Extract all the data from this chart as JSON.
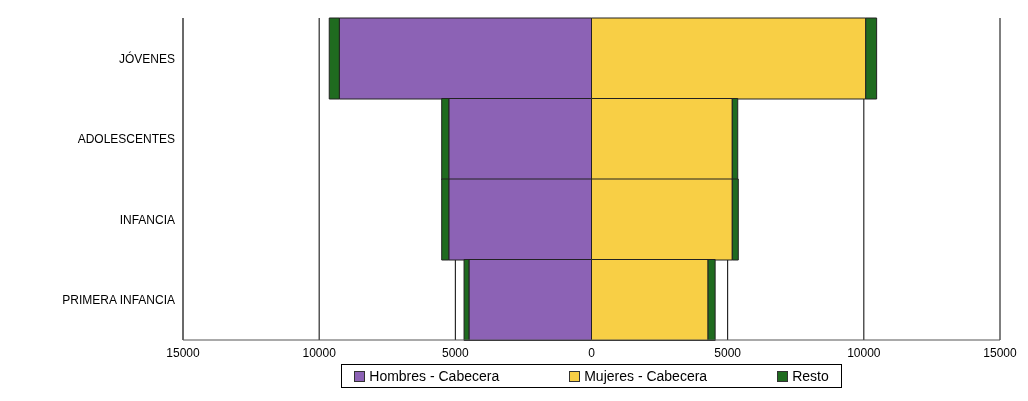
{
  "chart_data": {
    "type": "bar",
    "orientation": "horizontal",
    "stacked": true,
    "categories": [
      "JÓVENES",
      "ADOLESCENTES",
      "INFANCIA",
      "PRIMERA INFANCIA"
    ],
    "series": [
      {
        "name": "Hombres - Cabecera",
        "color": "#8c62b5",
        "values": [
          -9260,
          -5240,
          -5240,
          -4500
        ]
      },
      {
        "name": "Mujeres - Cabecera",
        "color": "#f8cf45",
        "values": [
          10070,
          5170,
          5170,
          4280
        ]
      },
      {
        "name": "Resto",
        "color": "#1f6b1f",
        "values": [
          -370,
          -260,
          -260,
          -180
        ]
      },
      {
        "color": "#1f6b1f",
        "values": [
          400,
          200,
          220,
          260
        ]
      }
    ],
    "xlim": [
      -15000,
      15000
    ],
    "xticks": [
      {
        "value": -15000,
        "label": "15000"
      },
      {
        "value": -10000,
        "label": "10000"
      },
      {
        "value": -5000,
        "label": "5000"
      },
      0,
      5000,
      10000,
      {
        "value": 15000,
        "label": "15000"
      }
    ],
    "grid": "x",
    "legend": "bottom"
  }
}
